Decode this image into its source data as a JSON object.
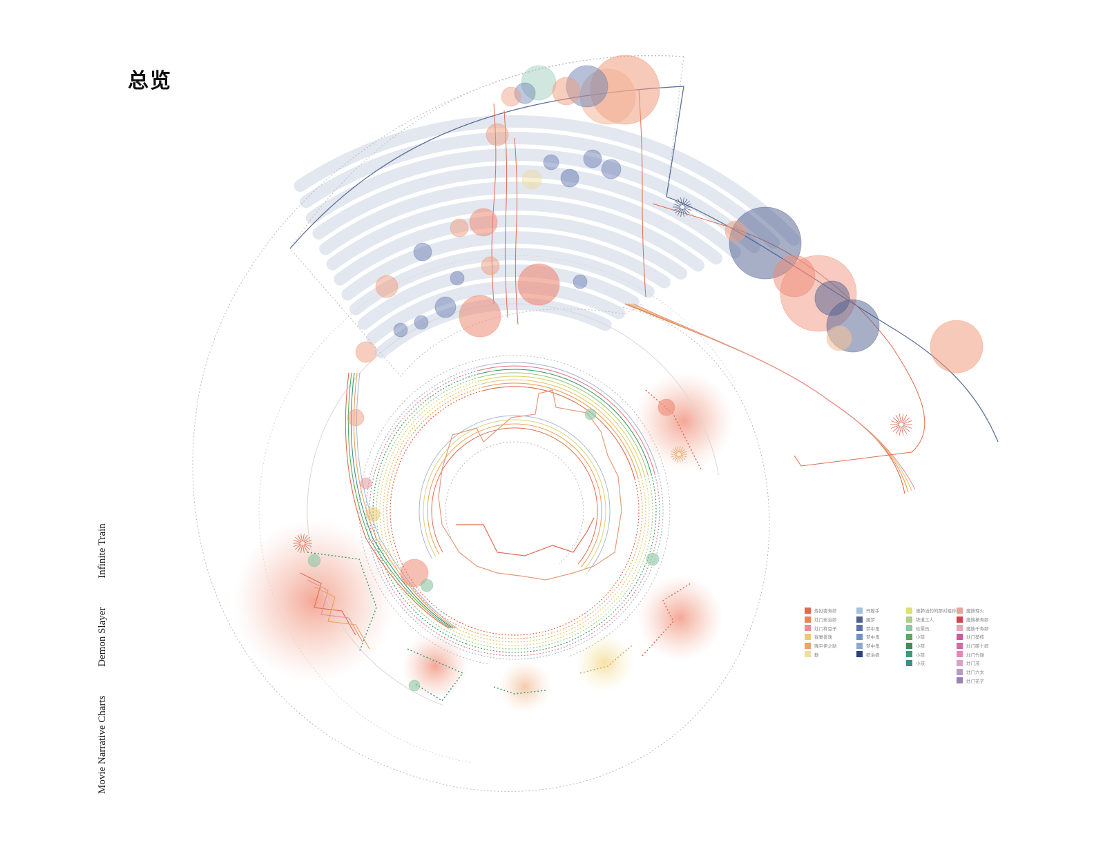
{
  "title": "总览",
  "caption": {
    "line1": "Movie Narrative Charts",
    "line2": "Demon Slayer",
    "line3": "Infinite Train"
  },
  "colors": {
    "arc_band": "#dfe4ee",
    "dotted_guide": "#b9b9b9",
    "ring_lines": [
      "#e06a4e",
      "#e8a05a",
      "#e9c56a",
      "#d9d46e",
      "#9cc97e",
      "#3f9a6a",
      "#e77b8e",
      "#a7b8d6"
    ],
    "char_blue": "#5b6f98",
    "char_orange": "#e38f6c"
  },
  "legend": [
    [
      {
        "label": "炼狱杏寿郎",
        "color": "#e06a4e"
      },
      {
        "label": "灶门炭治郎",
        "color": "#e5865a"
      },
      {
        "label": "灶门祢豆子",
        "color": "#e48f94"
      },
      {
        "label": "我妻善逸",
        "color": "#eec77a"
      },
      {
        "label": "嘴平伊之助",
        "color": "#eda36a"
      },
      {
        "label": "勤",
        "color": "#f3dca0"
      }
    ],
    [
      {
        "label": "开膛手",
        "color": "#a3c2e0"
      },
      {
        "label": "魇梦",
        "color": "#4f5f8f"
      },
      {
        "label": "梦中鬼",
        "color": "#5d72a8"
      },
      {
        "label": "梦中鬼",
        "color": "#7391c4"
      },
      {
        "label": "梦中鬼",
        "color": "#8fa8d0"
      },
      {
        "label": "狛治病",
        "color": "#2e3f8a"
      }
    ],
    [
      {
        "label": "患肺当药的那对祖孙女",
        "color": "#d9e07a"
      },
      {
        "label": "铁道工人",
        "color": "#a9cf8a"
      },
      {
        "label": "检票员",
        "color": "#8cc7a2"
      },
      {
        "label": "小孩",
        "color": "#58a85f"
      },
      {
        "label": "小孩",
        "color": "#3e8f55"
      },
      {
        "label": "小孩",
        "color": "#3d9a78"
      },
      {
        "label": "小孩",
        "color": "#3f8e86"
      }
    ],
    [
      {
        "label": "魔族瑠火",
        "color": "#e7a49b"
      },
      {
        "label": "魔族槙寿郎",
        "color": "#c9474d"
      },
      {
        "label": "魔族千寿郎",
        "color": "#eaa5b8"
      },
      {
        "label": "灶门葵枝",
        "color": "#cc5a99"
      },
      {
        "label": "灶门碳十郎",
        "color": "#d06aa8"
      },
      {
        "label": "灶门竹雄",
        "color": "#e389b8"
      },
      {
        "label": "灶门茂",
        "color": "#d9a2c6"
      },
      {
        "label": "灶门六太",
        "color": "#b69ac6"
      },
      {
        "label": "灶门花子",
        "color": "#9a80b4"
      }
    ]
  ]
}
